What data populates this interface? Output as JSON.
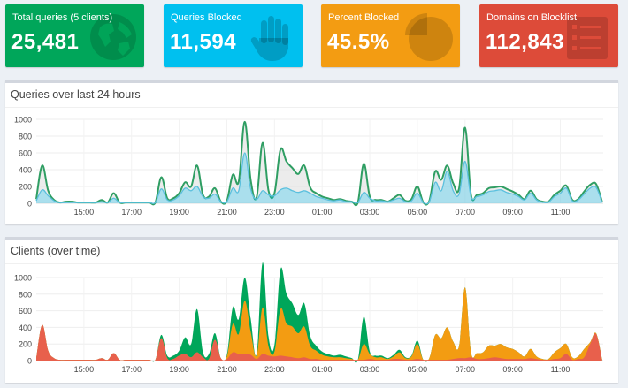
{
  "stats": {
    "total": {
      "label": "Total queries (5 clients)",
      "value": "25,481",
      "icon": "globe-icon",
      "color": "#00a65a"
    },
    "blocked": {
      "label": "Queries Blocked",
      "value": "11,594",
      "icon": "hand-icon",
      "color": "#00c0ef"
    },
    "percent": {
      "label": "Percent Blocked",
      "value": "45.5%",
      "icon": "pie-chart-icon",
      "color": "#f39c12"
    },
    "domains": {
      "label": "Domains on Blocklist",
      "value": "112,843",
      "icon": "list-icon",
      "color": "#dd4b39"
    }
  },
  "panels": {
    "queries": {
      "title": "Queries over last 24 hours"
    },
    "clients": {
      "title": "Clients (over time)"
    }
  },
  "chart_data": [
    {
      "type": "area",
      "y_ticks": [
        0,
        200,
        400,
        600,
        800,
        1000
      ],
      "ylim": [
        0,
        1000
      ],
      "x_ticks": [
        "15:00",
        "17:00",
        "19:00",
        "21:00",
        "23:00",
        "01:00",
        "03:00",
        "05:00",
        "07:00",
        "09:00",
        "11:00"
      ],
      "x_range": [
        13.0,
        36.8
      ],
      "x": [
        13.0,
        13.25,
        13.5,
        13.75,
        14.0,
        14.25,
        14.5,
        14.75,
        15.0,
        15.25,
        15.5,
        15.75,
        16.0,
        16.25,
        16.5,
        16.75,
        17.0,
        17.25,
        17.5,
        17.75,
        18.0,
        18.25,
        18.5,
        18.75,
        19.0,
        19.25,
        19.5,
        19.75,
        20.0,
        20.25,
        20.5,
        20.75,
        21.0,
        21.25,
        21.5,
        21.75,
        22.0,
        22.25,
        22.5,
        22.75,
        23.0,
        23.25,
        23.5,
        23.75,
        24.0,
        24.25,
        24.5,
        24.75,
        25.0,
        25.25,
        25.5,
        25.75,
        26.0,
        26.25,
        26.5,
        26.75,
        27.0,
        27.25,
        27.5,
        27.75,
        28.0,
        28.25,
        28.5,
        28.75,
        29.0,
        29.25,
        29.5,
        29.75,
        30.0,
        30.25,
        30.5,
        30.75,
        31.0,
        31.25,
        31.5,
        31.75,
        32.0,
        32.25,
        32.5,
        32.75,
        33.0,
        33.25,
        33.5,
        33.75,
        34.0,
        34.25,
        34.5,
        34.75,
        35.0,
        35.25,
        35.5,
        35.75,
        36.0,
        36.25,
        36.5,
        36.75
      ],
      "series": [
        {
          "role": "total",
          "color": "#2f9e63",
          "fill": "rgba(220,220,220,0.55)",
          "values": [
            50,
            450,
            150,
            40,
            10,
            20,
            20,
            10,
            10,
            10,
            10,
            40,
            10,
            120,
            10,
            10,
            10,
            10,
            10,
            10,
            10,
            310,
            60,
            60,
            120,
            250,
            200,
            450,
            100,
            80,
            180,
            20,
            30,
            340,
            260,
            970,
            280,
            70,
            720,
            150,
            120,
            640,
            500,
            420,
            350,
            450,
            190,
            120,
            80,
            60,
            40,
            50,
            30,
            20,
            10,
            470,
            80,
            40,
            40,
            20,
            60,
            100,
            30,
            50,
            200,
            10,
            30,
            380,
            280,
            450,
            240,
            180,
            900,
            100,
            100,
            120,
            180,
            190,
            200,
            170,
            140,
            100,
            50,
            150,
            50,
            20,
            20,
            100,
            150,
            210,
            40,
            50,
            140,
            220,
            230,
            20
          ]
        },
        {
          "role": "blocked",
          "color": "#5bc0de",
          "fill": "rgba(0,192,239,0.28)",
          "values": [
            30,
            160,
            90,
            30,
            10,
            10,
            10,
            10,
            10,
            10,
            10,
            20,
            10,
            60,
            10,
            10,
            10,
            10,
            10,
            10,
            10,
            170,
            40,
            40,
            90,
            180,
            150,
            200,
            80,
            60,
            110,
            20,
            20,
            180,
            150,
            600,
            170,
            50,
            150,
            100,
            90,
            160,
            180,
            150,
            130,
            150,
            120,
            80,
            60,
            40,
            30,
            40,
            20,
            20,
            10,
            130,
            60,
            30,
            30,
            20,
            40,
            60,
            20,
            30,
            120,
            10,
            20,
            250,
            150,
            380,
            150,
            110,
            500,
            80,
            80,
            100,
            140,
            150,
            160,
            130,
            110,
            80,
            40,
            120,
            40,
            15,
            15,
            80,
            120,
            180,
            30,
            40,
            110,
            180,
            190,
            15
          ]
        }
      ]
    },
    {
      "type": "area",
      "y_ticks": [
        0,
        200,
        400,
        600,
        800,
        1000
      ],
      "ylim": [
        0,
        1000
      ],
      "x_ticks": [
        "15:00",
        "17:00",
        "19:00",
        "21:00",
        "23:00",
        "01:00",
        "03:00",
        "05:00",
        "07:00",
        "09:00",
        "11:00"
      ],
      "x_range": [
        13.0,
        36.8
      ],
      "x": [
        13.0,
        13.25,
        13.5,
        13.75,
        14.0,
        14.25,
        14.5,
        14.75,
        15.0,
        15.25,
        15.5,
        15.75,
        16.0,
        16.25,
        16.5,
        16.75,
        17.0,
        17.25,
        17.5,
        17.75,
        18.0,
        18.25,
        18.5,
        18.75,
        19.0,
        19.25,
        19.5,
        19.75,
        20.0,
        20.25,
        20.5,
        20.75,
        21.0,
        21.25,
        21.5,
        21.75,
        22.0,
        22.25,
        22.5,
        22.75,
        23.0,
        23.25,
        23.5,
        23.75,
        24.0,
        24.25,
        24.5,
        24.75,
        25.0,
        25.25,
        25.5,
        25.75,
        26.0,
        26.25,
        26.5,
        26.75,
        27.0,
        27.25,
        27.5,
        27.75,
        28.0,
        28.25,
        28.5,
        28.75,
        29.0,
        29.25,
        29.5,
        29.75,
        30.0,
        30.25,
        30.5,
        30.75,
        31.0,
        31.25,
        31.5,
        31.75,
        32.0,
        32.25,
        32.5,
        32.75,
        33.0,
        33.25,
        33.5,
        33.75,
        34.0,
        34.25,
        34.5,
        34.75,
        35.0,
        35.25,
        35.5,
        35.75,
        36.0,
        36.25,
        36.5,
        36.75
      ],
      "series": [
        {
          "color": "#e8604c",
          "values": [
            30,
            430,
            120,
            30,
            10,
            10,
            10,
            10,
            10,
            10,
            10,
            30,
            10,
            90,
            10,
            10,
            10,
            10,
            10,
            10,
            10,
            270,
            30,
            20,
            60,
            80,
            40,
            100,
            40,
            20,
            250,
            30,
            20,
            100,
            80,
            80,
            70,
            20,
            80,
            60,
            50,
            60,
            50,
            40,
            30,
            40,
            20,
            20,
            10,
            10,
            10,
            10,
            10,
            10,
            10,
            10,
            20,
            10,
            10,
            10,
            20,
            20,
            10,
            10,
            20,
            10,
            10,
            10,
            10,
            10,
            20,
            30,
            30,
            40,
            20,
            20,
            30,
            40,
            30,
            20,
            20,
            20,
            20,
            30,
            20,
            10,
            10,
            20,
            30,
            80,
            10,
            20,
            40,
            200,
            320,
            10
          ]
        },
        {
          "color": "#f39c12",
          "values": [
            0,
            0,
            0,
            0,
            0,
            0,
            0,
            0,
            0,
            0,
            0,
            0,
            0,
            0,
            0,
            0,
            0,
            0,
            0,
            0,
            0,
            0,
            0,
            0,
            0,
            0,
            0,
            0,
            0,
            0,
            0,
            0,
            30,
            340,
            240,
            640,
            280,
            40,
            560,
            110,
            60,
            560,
            400,
            370,
            300,
            370,
            160,
            100,
            60,
            40,
            30,
            30,
            20,
            10,
            0,
            190,
            60,
            30,
            30,
            10,
            30,
            80,
            20,
            40,
            180,
            0,
            20,
            300,
            260,
            390,
            210,
            150,
            850,
            60,
            70,
            80,
            150,
            140,
            170,
            140,
            120,
            80,
            30,
            110,
            30,
            10,
            10,
            80,
            120,
            120,
            30,
            30,
            100,
            20,
            10,
            10
          ]
        },
        {
          "color": "#00a65a",
          "values": [
            0,
            0,
            0,
            0,
            0,
            0,
            0,
            0,
            0,
            0,
            0,
            0,
            0,
            0,
            0,
            0,
            0,
            0,
            0,
            0,
            0,
            40,
            30,
            40,
            60,
            200,
            160,
            520,
            60,
            60,
            80,
            0,
            20,
            200,
            180,
            280,
            160,
            20,
            540,
            120,
            80,
            480,
            360,
            280,
            220,
            280,
            120,
            60,
            40,
            30,
            20,
            30,
            20,
            10,
            0,
            330,
            30,
            20,
            20,
            10,
            20,
            30,
            10,
            10,
            40,
            0,
            0,
            0,
            0,
            0,
            0,
            0,
            0,
            0,
            0,
            0,
            0,
            0,
            0,
            0,
            0,
            0,
            0,
            0,
            0,
            0,
            0,
            0,
            0,
            0,
            0,
            0,
            0,
            0,
            0,
            0
          ]
        }
      ]
    }
  ]
}
